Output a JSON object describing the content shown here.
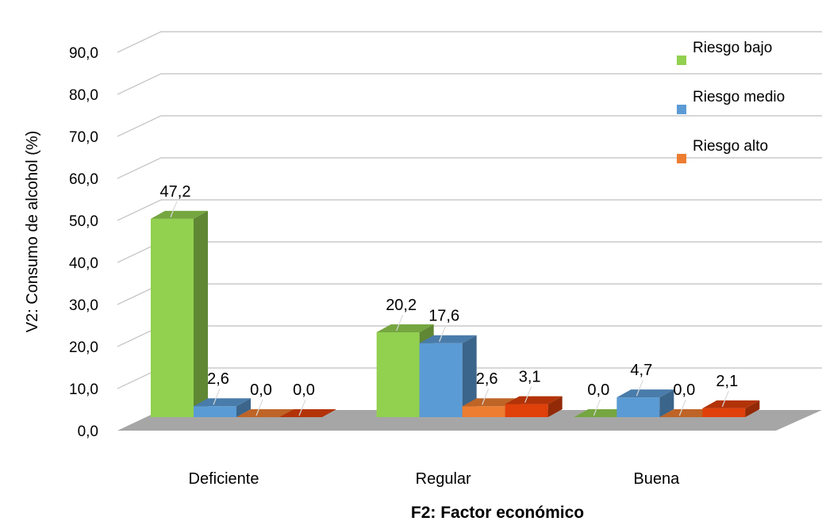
{
  "chart_data": {
    "type": "bar",
    "title": "",
    "xlabel": "F2: Factor económico",
    "ylabel": "V2: Consumo de alcohol (%)",
    "ylim": [
      0,
      90
    ],
    "yticks": [
      "0,0",
      "10,0",
      "20,0",
      "30,0",
      "40,0",
      "50,0",
      "60,0",
      "70,0",
      "80,0",
      "90,0"
    ],
    "grid": true,
    "legend_position": "top-right",
    "categories": [
      "Deficiente",
      "Regular",
      "Buena"
    ],
    "series": [
      {
        "name": "Riesgo bajo",
        "values": [
          47.2,
          20.2,
          0.0
        ],
        "labels": [
          "47,2",
          "20,2",
          "0,0"
        ],
        "color": "#92d050",
        "in_legend": true
      },
      {
        "name": "Riesgo medio",
        "values": [
          2.6,
          17.6,
          4.7
        ],
        "labels": [
          "2,6",
          "17,6",
          "4,7"
        ],
        "color": "#5b9bd5",
        "in_legend": true
      },
      {
        "name": "Riesgo alto",
        "values": [
          0.0,
          2.6,
          0.0
        ],
        "labels": [
          "0,0",
          "2,6",
          "0,0"
        ],
        "color": "#ed7d31",
        "in_legend": true
      },
      {
        "name": "",
        "values": [
          0.0,
          3.1,
          2.1
        ],
        "labels": [
          "0,0",
          "3,1",
          "2,1"
        ],
        "color": "#e0400a",
        "in_legend": false
      }
    ]
  }
}
